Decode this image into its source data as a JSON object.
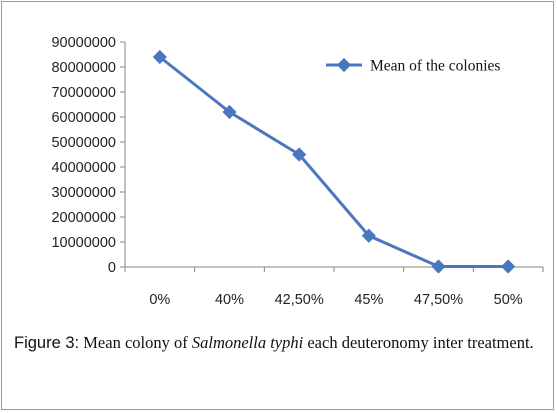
{
  "chart_data": {
    "type": "line",
    "categories": [
      "0%",
      "40%",
      "42,50%",
      "45%",
      "47,50%",
      "50%"
    ],
    "series": [
      {
        "name": "Mean of the colonies",
        "values": [
          84000000,
          62000000,
          45000000,
          12500000,
          200000,
          200000
        ]
      }
    ],
    "y_ticks": [
      "0",
      "10000000",
      "20000000",
      "30000000",
      "40000000",
      "50000000",
      "60000000",
      "70000000",
      "80000000",
      "90000000"
    ],
    "ylim": [
      0,
      90000000
    ],
    "grid": false,
    "legend_position": "top-right",
    "colors": {
      "series": "#4a78be",
      "axis": "#868686"
    }
  },
  "caption": {
    "label": "Figure 3:",
    "text_before": "Mean colony of",
    "species": "Salmonella typhi",
    "text_after": "each deuteronomy inter treatment."
  }
}
